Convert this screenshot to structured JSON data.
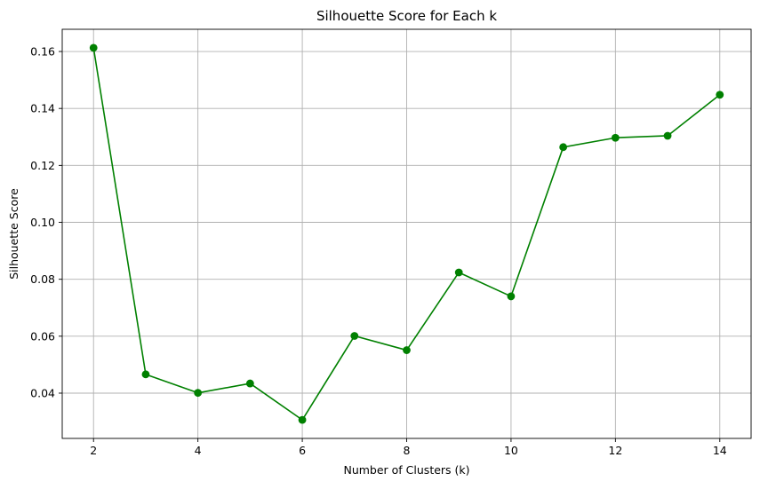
{
  "chart_data": {
    "type": "line",
    "title": "Silhouette Score for Each k",
    "xlabel": "Number of Clusters (k)",
    "ylabel": "Silhouette Score",
    "x": [
      2,
      3,
      4,
      5,
      6,
      7,
      8,
      9,
      10,
      11,
      12,
      13,
      14
    ],
    "series": [
      {
        "values": [
          0.1613,
          0.0466,
          0.0401,
          0.0434,
          0.0306,
          0.0601,
          0.0551,
          0.0824,
          0.074,
          0.1264,
          0.1297,
          0.1304,
          0.1448
        ],
        "color": "#008000",
        "marker": "circle"
      }
    ],
    "xlim": [
      1.4,
      14.6
    ],
    "ylim": [
      0.0241,
      0.1678
    ],
    "xticks": [
      2,
      4,
      6,
      8,
      10,
      12,
      14
    ],
    "xtick_labels": [
      "2",
      "4",
      "6",
      "8",
      "10",
      "12",
      "14"
    ],
    "yticks": [
      0.04,
      0.06,
      0.08,
      0.1,
      0.12,
      0.14,
      0.16
    ],
    "ytick_labels": [
      "0.04",
      "0.06",
      "0.08",
      "0.10",
      "0.12",
      "0.14",
      "0.16"
    ],
    "grid": true,
    "legend": null
  }
}
